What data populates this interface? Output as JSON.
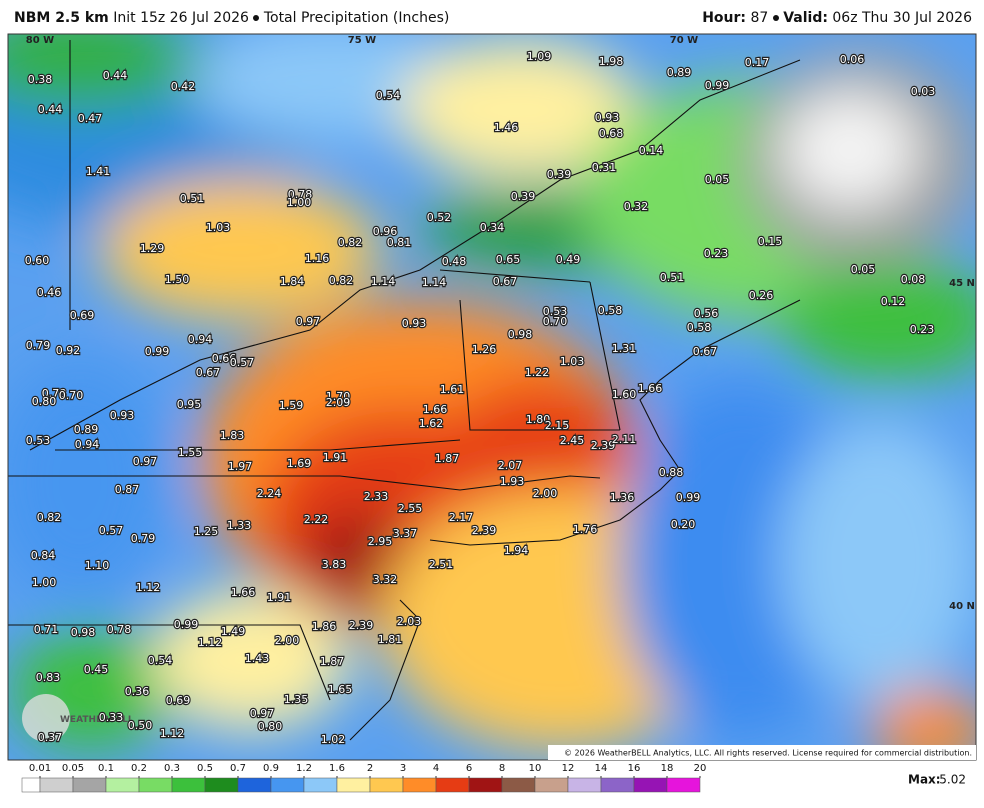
{
  "header": {
    "model": "NBM 2.5 km",
    "init": "Init 15z 26 Jul 2026",
    "product": "Total Precipitation (Inches)",
    "hour_label": "Hour:",
    "hour": 87,
    "valid_label": "Valid:",
    "valid": "06z Thu 30 Jul 2026"
  },
  "map": {
    "geo_labels": [
      "80 W",
      "75 W",
      "70 W",
      "45 N",
      "40 N"
    ],
    "point_labels": [
      "0.38",
      "0.44",
      "0.42",
      "0.44",
      "0.47",
      "0.54",
      "1.09",
      "1.98",
      "0.89",
      "0.17",
      "0.06",
      "0.99",
      "0.03",
      "1.46",
      "0.93",
      "0.68",
      "0.14",
      "1.41",
      "0.31",
      "0.39",
      "0.05",
      "0.78",
      "1.00",
      "0.51",
      "0.39",
      "0.32",
      "1.03",
      "0.52",
      "0.34",
      "0.96",
      "0.82",
      "0.81",
      "0.15",
      "1.29",
      "1.16",
      "0.48",
      "0.65",
      "0.49",
      "0.23",
      "0.60",
      "1.50",
      "1.84",
      "0.82",
      "1.14",
      "1.14",
      "0.67",
      "0.51",
      "0.05",
      "0.08",
      "0.46",
      "0.26",
      "0.12",
      "0.69",
      "0.97",
      "0.93",
      "0.53",
      "0.70",
      "0.58",
      "0.56",
      "0.58",
      "0.23",
      "0.79",
      "0.92",
      "0.99",
      "0.94",
      "1.26",
      "0.98",
      "1.03",
      "1.31",
      "0.67",
      "0.66",
      "0.57",
      "0.67",
      "1.22",
      "1.66",
      "0.78",
      "0.70",
      "0.80",
      "1.61",
      "1.70",
      "2.09",
      "1.60",
      "0.95",
      "1.59",
      "1.66",
      "0.93",
      "1.62",
      "1.80",
      "2.15",
      "0.89",
      "1.83",
      "2.45",
      "2.39",
      "2.11",
      "0.53",
      "0.94",
      "1.55",
      "1.87",
      "1.97",
      "1.69",
      "1.91",
      "2.07",
      "0.97",
      "0.88",
      "1.93",
      "0.87",
      "2.24",
      "2.33",
      "2.00",
      "1.36",
      "0.99",
      "2.55",
      "0.82",
      "2.22",
      "1.33",
      "2.17",
      "0.57",
      "1.25",
      "2.39",
      "1.76",
      "0.20",
      "0.79",
      "3.37",
      "2.95",
      "0.84",
      "1.94",
      "1.10",
      "3.83",
      "2.51",
      "1.00",
      "3.32",
      "1.12",
      "1.66",
      "1.91",
      "0.71",
      "0.98",
      "0.78",
      "0.99",
      "1.49",
      "1.86",
      "2.39",
      "2.03",
      "1.12",
      "2.00",
      "1.81",
      "1.87",
      "1.43",
      "0.45",
      "0.54",
      "0.83",
      "1.65",
      "0.36",
      "0.69",
      "1.35",
      "0.97",
      "0.80",
      "0.33",
      "0.50",
      "1.12",
      "0.37",
      "1.02"
    ],
    "logo": "WEATHERBELL",
    "copyright": "© 2026 WeatherBELL Analytics, LLC. All rights reserved. License required for commercial distribution."
  },
  "legend": {
    "ticks": [
      0.01,
      0.05,
      0.1,
      0.2,
      0.3,
      0.5,
      0.7,
      0.9,
      1.2,
      1.6,
      2,
      3,
      4,
      6,
      8,
      10,
      12,
      14,
      16,
      18,
      20
    ],
    "colors": [
      "#ffffff",
      "#cfcfcf",
      "#a5a5a5",
      "#b4f0a0",
      "#78dc64",
      "#3cc03c",
      "#1e8c1e",
      "#1e64dc",
      "#4696f0",
      "#8cc8f8",
      "#fff0a0",
      "#ffc850",
      "#ff8c28",
      "#e63c14",
      "#a01414",
      "#8c5a46",
      "#c8a08c",
      "#c8b4e6",
      "#8c64c8",
      "#9614b4",
      "#e614dc"
    ],
    "max_label": "Max:",
    "max": 5.02
  }
}
